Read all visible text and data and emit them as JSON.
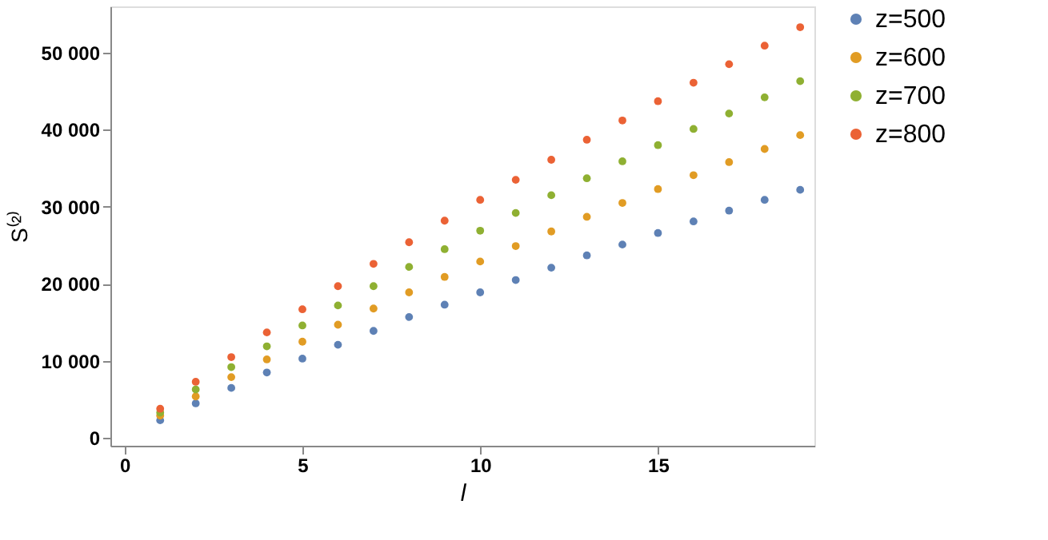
{
  "chart_data": {
    "type": "scatter",
    "xlabel": "l",
    "ylabel": "S⁽²⁾",
    "x": [
      1,
      2,
      3,
      4,
      5,
      6,
      7,
      8,
      9,
      10,
      11,
      12,
      13,
      14,
      15,
      16,
      17,
      18,
      19
    ],
    "series": [
      {
        "name": "z=500",
        "color": "#5e81b5",
        "values": [
          2300,
          4500,
          6500,
          8500,
          10300,
          12100,
          13900,
          15700,
          17300,
          18900,
          20500,
          22100,
          23700,
          25100,
          26600,
          28100,
          29500,
          30900,
          32200
        ]
      },
      {
        "name": "z=600",
        "color": "#e19c24",
        "values": [
          2900,
          5400,
          7900,
          10200,
          12500,
          14700,
          16800,
          18900,
          20900,
          22900,
          24900,
          26800,
          28700,
          30500,
          32300,
          34100,
          35800,
          37500,
          39300
        ]
      },
      {
        "name": "z=700",
        "color": "#8fb032",
        "values": [
          3300,
          6300,
          9200,
          11900,
          14600,
          17200,
          19700,
          22200,
          24500,
          26900,
          29200,
          31500,
          33700,
          35900,
          38000,
          40100,
          42100,
          44200,
          46300
        ]
      },
      {
        "name": "z=800",
        "color": "#eb6235",
        "values": [
          3800,
          7300,
          10500,
          13700,
          16700,
          19700,
          22600,
          25400,
          28200,
          30900,
          33500,
          36100,
          38700,
          41200,
          43700,
          46100,
          48500,
          50900,
          53300
        ]
      }
    ],
    "xlim": [
      -0.4,
      19.4
    ],
    "xticks": [
      0,
      5,
      10,
      15
    ],
    "ylim": [
      -1000,
      56000
    ],
    "yticks": [
      0,
      {
        "value": 10000,
        "label": "10 000"
      },
      {
        "value": 20000,
        "label": "20 000"
      },
      {
        "value": 30000,
        "label": "30 000"
      },
      {
        "value": 40000,
        "label": "40 000"
      },
      {
        "value": 50000,
        "label": "50 000"
      }
    ],
    "grid": false,
    "legend": "right",
    "marker": "circle"
  }
}
